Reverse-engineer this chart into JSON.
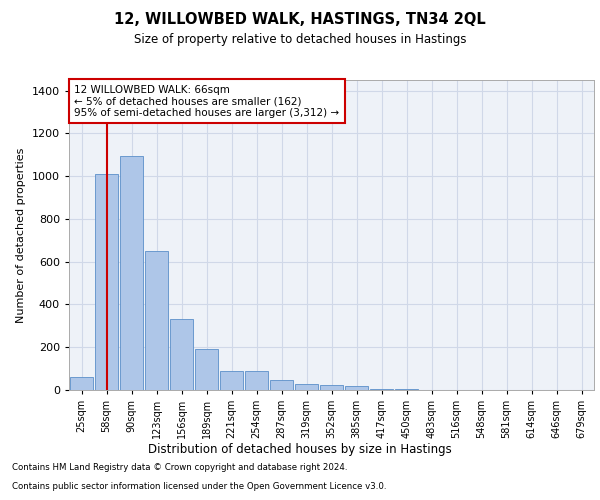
{
  "title_line1": "12, WILLOWBED WALK, HASTINGS, TN34 2QL",
  "title_line2": "Size of property relative to detached houses in Hastings",
  "xlabel": "Distribution of detached houses by size in Hastings",
  "ylabel": "Number of detached properties",
  "categories": [
    "25sqm",
    "58sqm",
    "90sqm",
    "123sqm",
    "156sqm",
    "189sqm",
    "221sqm",
    "254sqm",
    "287sqm",
    "319sqm",
    "352sqm",
    "385sqm",
    "417sqm",
    "450sqm",
    "483sqm",
    "516sqm",
    "548sqm",
    "581sqm",
    "614sqm",
    "646sqm",
    "679sqm"
  ],
  "values": [
    62,
    1010,
    1095,
    650,
    330,
    190,
    90,
    90,
    45,
    28,
    25,
    18,
    5,
    3,
    2,
    1,
    1,
    0,
    0,
    0,
    0
  ],
  "bar_color": "#aec6e8",
  "bar_edge_color": "#5b8fc9",
  "grid_color": "#d0d8e8",
  "background_color": "#eef2f8",
  "annotation_box_text": "12 WILLOWBED WALK: 66sqm\n← 5% of detached houses are smaller (162)\n95% of semi-detached houses are larger (3,312) →",
  "annotation_box_color": "#ffffff",
  "annotation_box_edge_color": "#cc0000",
  "vline_x": 1,
  "vline_color": "#cc0000",
  "ylim": [
    0,
    1450
  ],
  "yticks": [
    0,
    200,
    400,
    600,
    800,
    1000,
    1200,
    1400
  ],
  "footnote_line1": "Contains HM Land Registry data © Crown copyright and database right 2024.",
  "footnote_line2": "Contains public sector information licensed under the Open Government Licence v3.0."
}
